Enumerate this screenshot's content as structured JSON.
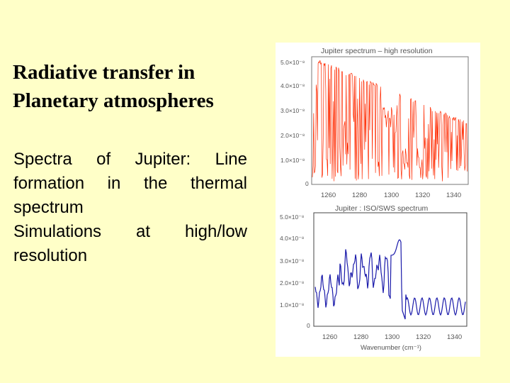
{
  "slide": {
    "title_lines": [
      "Radiative transfer in",
      "Planetary atmospheres"
    ],
    "body_lines": [
      "Spectra of Jupiter: Line",
      "formation in the thermal",
      "spectrum",
      "Simulations at high/low",
      "resolution"
    ]
  },
  "figure": {
    "top_panel": {
      "title": "Jupiter spectrum – high resolution",
      "y_ticks": [
        "5.0×10⁻⁸",
        "4.0×10⁻⁸",
        "3.0×10⁻⁸",
        "2.0×10⁻⁸",
        "1.0×10⁻⁸",
        "0"
      ],
      "x_ticks": [
        "1260",
        "1280",
        "1300",
        "1320",
        "1340"
      ],
      "line_color": "#FF2A00"
    },
    "bottom_panel": {
      "title": "Jupiter : ISO/SWS  spectrum",
      "y_ticks": [
        "5.0×10⁻⁸",
        "4.0×10⁻⁸",
        "3.0×10⁻⁸",
        "2.0×10⁻⁸",
        "1.0×10⁻⁸",
        "0"
      ],
      "x_ticks": [
        "1260",
        "1280",
        "1300",
        "1320",
        "1340"
      ],
      "xlabel": "Wavenumber (cm⁻¹)",
      "line_color": "#1A1AAA"
    }
  }
}
